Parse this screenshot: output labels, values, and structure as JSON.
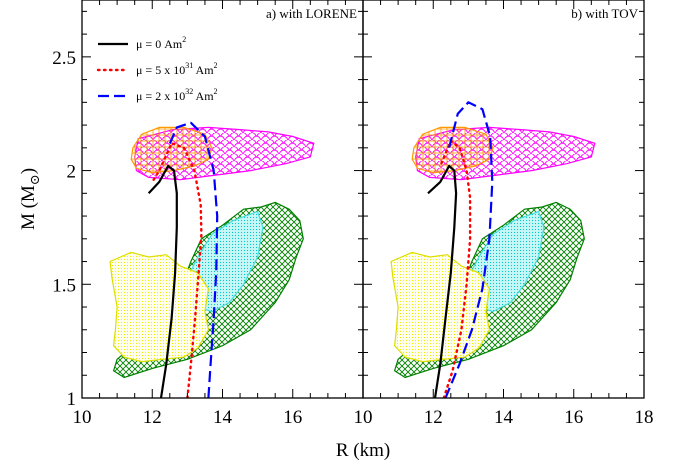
{
  "chart_data": {
    "type": "line",
    "xlabel": "R (km)",
    "ylabel_main": "M (M",
    "ylabel_sub": "⊙",
    "ylabel_close": ")",
    "ylim": [
      1.0,
      2.75
    ],
    "yticks": [
      1,
      1.5,
      2,
      2.5
    ],
    "ytick_labels": [
      "1",
      "1.5",
      "2",
      "2.5"
    ],
    "panels": [
      {
        "title": "a) with LORENE",
        "xlim": [
          10,
          18
        ],
        "xticks": [
          10,
          12,
          14,
          16
        ],
        "xtick_labels": [
          "10",
          "12",
          "14",
          "16"
        ],
        "series": [
          {
            "name_main": "μ  = 0 Am",
            "name_sup": "2",
            "style": "solid",
            "color": "#000000",
            "points": [
              [
                12.25,
                1.0
              ],
              [
                12.4,
                1.15
              ],
              [
                12.55,
                1.35
              ],
              [
                12.65,
                1.55
              ],
              [
                12.7,
                1.75
              ],
              [
                12.7,
                1.9
              ],
              [
                12.62,
                2.0
              ],
              [
                12.45,
                2.02
              ],
              [
                12.2,
                1.95
              ],
              [
                11.9,
                1.9
              ]
            ]
          },
          {
            "name_main": "μ  = 5 x 10",
            "name_sup": "31",
            "name_tail": " Am",
            "name_sup2": "2",
            "style": "dotted",
            "color": "#ff0000",
            "points": [
              [
                13.0,
                1.0
              ],
              [
                13.1,
                1.15
              ],
              [
                13.22,
                1.35
              ],
              [
                13.32,
                1.55
              ],
              [
                13.4,
                1.72
              ],
              [
                13.38,
                1.85
              ],
              [
                13.2,
                2.0
              ],
              [
                12.9,
                2.1
              ],
              [
                12.55,
                2.12
              ],
              [
                12.2,
                2.0
              ],
              [
                12.0,
                1.95
              ]
            ]
          },
          {
            "name_main": "μ  = 2 x 10",
            "name_sup": "32",
            "name_tail": " Am",
            "name_sup2": "2",
            "style": "dashed",
            "color": "#0000ff",
            "points": [
              [
                13.6,
                1.0
              ],
              [
                13.66,
                1.15
              ],
              [
                13.75,
                1.35
              ],
              [
                13.82,
                1.55
              ],
              [
                13.85,
                1.8
              ],
              [
                13.75,
                2.0
              ],
              [
                13.5,
                2.15
              ],
              [
                13.1,
                2.21
              ],
              [
                12.7,
                2.19
              ],
              [
                12.45,
                2.1
              ]
            ]
          }
        ]
      },
      {
        "title": "b) with TOV",
        "xlim": [
          10,
          18
        ],
        "xticks": [
          10,
          12,
          14,
          16,
          18
        ],
        "xtick_labels": [
          "10",
          "12",
          "14",
          "16",
          "18"
        ],
        "series": [
          {
            "style": "solid",
            "color": "#000000",
            "points": [
              [
                12.05,
                1.0
              ],
              [
                12.2,
                1.15
              ],
              [
                12.35,
                1.35
              ],
              [
                12.5,
                1.55
              ],
              [
                12.6,
                1.75
              ],
              [
                12.65,
                1.9
              ],
              [
                12.6,
                2.0
              ],
              [
                12.45,
                2.02
              ],
              [
                12.2,
                1.95
              ],
              [
                11.85,
                1.9
              ]
            ]
          },
          {
            "style": "dotted",
            "color": "#ff0000",
            "points": [
              [
                12.3,
                1.0
              ],
              [
                12.55,
                1.12
              ],
              [
                12.8,
                1.3
              ],
              [
                12.95,
                1.5
              ],
              [
                13.05,
                1.7
              ],
              [
                13.05,
                1.88
              ],
              [
                12.95,
                2.0
              ],
              [
                12.75,
                2.1
              ],
              [
                12.5,
                2.13
              ],
              [
                12.2,
                2.02
              ]
            ]
          },
          {
            "style": "dashed",
            "color": "#0000ff",
            "points": [
              [
                12.35,
                1.0
              ],
              [
                12.75,
                1.15
              ],
              [
                13.1,
                1.3
              ],
              [
                13.4,
                1.48
              ],
              [
                13.6,
                1.7
              ],
              [
                13.68,
                1.95
              ],
              [
                13.62,
                2.15
              ],
              [
                13.4,
                2.27
              ],
              [
                13.0,
                2.3
              ],
              [
                12.7,
                2.25
              ],
              [
                12.45,
                2.1
              ]
            ]
          }
        ]
      }
    ],
    "regions": [
      {
        "kind": "pink-cross",
        "color": "#ff00ff",
        "points": [
          [
            11.6,
            2.14
          ],
          [
            12.6,
            2.18
          ],
          [
            13.6,
            2.19
          ],
          [
            14.5,
            2.18
          ],
          [
            15.3,
            2.17
          ],
          [
            16.0,
            2.15
          ],
          [
            16.6,
            2.12
          ],
          [
            16.5,
            2.06
          ],
          [
            15.8,
            2.03
          ],
          [
            14.8,
            2.0
          ],
          [
            13.8,
            1.98
          ],
          [
            12.8,
            1.96
          ],
          [
            11.9,
            1.97
          ],
          [
            11.55,
            2.0
          ],
          [
            11.5,
            2.06
          ]
        ]
      },
      {
        "kind": "orange-hatch",
        "color": "#ff9900",
        "points": [
          [
            11.45,
            2.1
          ],
          [
            11.7,
            2.16
          ],
          [
            12.2,
            2.19
          ],
          [
            12.9,
            2.19
          ],
          [
            13.5,
            2.16
          ],
          [
            13.7,
            2.1
          ],
          [
            13.6,
            2.05
          ],
          [
            13.2,
            2.02
          ],
          [
            12.6,
            2.0
          ],
          [
            12.0,
            1.99
          ],
          [
            11.55,
            2.01
          ],
          [
            11.4,
            2.05
          ]
        ]
      },
      {
        "kind": "green-cross",
        "color": "#008000",
        "points": [
          [
            11.0,
            1.17
          ],
          [
            11.6,
            1.25
          ],
          [
            12.2,
            1.35
          ],
          [
            12.8,
            1.48
          ],
          [
            13.1,
            1.6
          ],
          [
            13.4,
            1.7
          ],
          [
            14.0,
            1.76
          ],
          [
            14.6,
            1.83
          ],
          [
            15.1,
            1.84
          ],
          [
            15.5,
            1.86
          ],
          [
            15.9,
            1.83
          ],
          [
            16.2,
            1.78
          ],
          [
            16.3,
            1.7
          ],
          [
            16.1,
            1.62
          ],
          [
            15.9,
            1.52
          ],
          [
            15.5,
            1.42
          ],
          [
            14.8,
            1.3
          ],
          [
            14.0,
            1.23
          ],
          [
            13.0,
            1.17
          ],
          [
            12.0,
            1.13
          ],
          [
            11.2,
            1.09
          ],
          [
            10.9,
            1.12
          ]
        ]
      },
      {
        "kind": "cyan-dots",
        "color": "#00ffff",
        "points": [
          [
            13.0,
            1.53
          ],
          [
            13.3,
            1.62
          ],
          [
            13.7,
            1.72
          ],
          [
            14.3,
            1.78
          ],
          [
            15.0,
            1.82
          ],
          [
            15.15,
            1.75
          ],
          [
            15.0,
            1.62
          ],
          [
            14.6,
            1.5
          ],
          [
            14.2,
            1.42
          ],
          [
            13.7,
            1.38
          ],
          [
            13.3,
            1.4
          ],
          [
            13.05,
            1.46
          ]
        ]
      },
      {
        "kind": "yellow-dots",
        "color": "#ffff00",
        "points": [
          [
            10.85,
            1.53
          ],
          [
            10.8,
            1.6
          ],
          [
            11.4,
            1.64
          ],
          [
            11.9,
            1.62
          ],
          [
            12.4,
            1.63
          ],
          [
            12.8,
            1.58
          ],
          [
            13.3,
            1.55
          ],
          [
            13.6,
            1.48
          ],
          [
            13.5,
            1.38
          ],
          [
            13.6,
            1.3
          ],
          [
            13.3,
            1.22
          ],
          [
            12.9,
            1.18
          ],
          [
            12.3,
            1.17
          ],
          [
            11.7,
            1.16
          ],
          [
            11.2,
            1.18
          ],
          [
            10.9,
            1.23
          ],
          [
            10.95,
            1.3
          ],
          [
            11.0,
            1.4
          ]
        ]
      }
    ]
  }
}
